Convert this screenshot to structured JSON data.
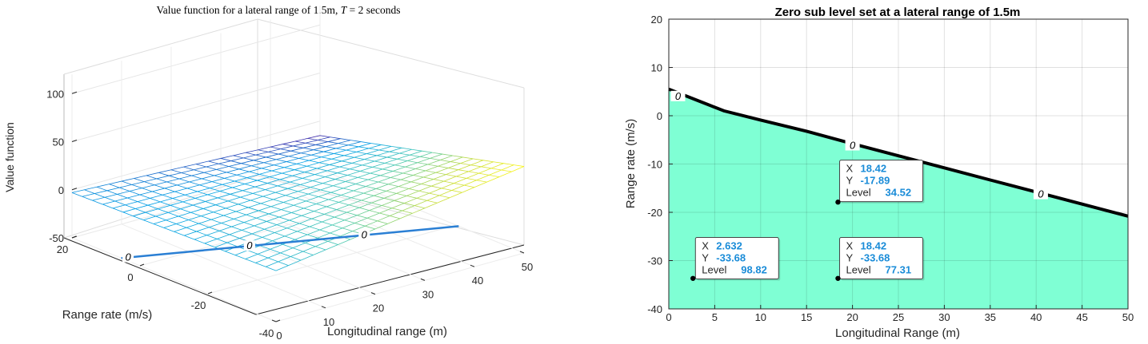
{
  "chart_data": [
    {
      "type": "surface",
      "title": "Value function for a lateral range of 1.5m, T = 2 seconds",
      "title_parts": {
        "prefix": "Value function for a lateral range of 1.5m, ",
        "var": "T",
        "suffix": " = 2 seconds"
      },
      "xlabel": "Longitudinal range (m)",
      "ylabel": "Range rate (m/s)",
      "zlabel": "Value function",
      "x_ticks": [
        "0",
        "10",
        "20",
        "30",
        "40",
        "50"
      ],
      "y_ticks": [
        "20",
        "0",
        "-20",
        "-40"
      ],
      "z_ticks": [
        "100",
        "50",
        "0",
        "-50"
      ],
      "xlim": [
        0,
        50
      ],
      "ylim": [
        -40,
        20
      ],
      "zlim": [
        -50,
        120
      ],
      "surface_corner_values": [
        {
          "x": 0,
          "y": 20,
          "z": -3
        },
        {
          "x": 50,
          "y": 20,
          "z": -15
        },
        {
          "x": 0,
          "y": -40,
          "z": 3
        },
        {
          "x": 50,
          "y": -40,
          "z": 40
        }
      ],
      "zero_contour_labels": [
        "0",
        "0",
        "0"
      ],
      "zero_contour": {
        "x": [
          0,
          50
        ],
        "y": [
          5.5,
          -20.8
        ]
      }
    },
    {
      "type": "contour",
      "title": "Zero sub level set at a lateral range of 1.5m",
      "xlabel": "Longitudinal Range (m)",
      "ylabel": "Range rate (m/s)",
      "x_ticks": [
        "0",
        "5",
        "10",
        "15",
        "20",
        "25",
        "30",
        "35",
        "40",
        "45",
        "50"
      ],
      "y_ticks": [
        "20",
        "10",
        "0",
        "-10",
        "-20",
        "-30",
        "-40"
      ],
      "xlim": [
        0,
        50
      ],
      "ylim": [
        -40,
        20
      ],
      "fill_color": "#7fffd4",
      "line_color": "#000000",
      "zero_contour": {
        "x": [
          0,
          6,
          10,
          15,
          20,
          25,
          30,
          35,
          40,
          45,
          50
        ],
        "y": [
          5.5,
          1.0,
          -0.9,
          -3.2,
          -5.8,
          -8.3,
          -10.8,
          -13.3,
          -15.8,
          -18.3,
          -20.8
        ]
      },
      "contour_labels": [
        {
          "text": "0",
          "x": 1,
          "y": 4
        },
        {
          "text": "0",
          "x": 20,
          "y": -6.2
        },
        {
          "text": "0",
          "x": 40.5,
          "y": -16.3
        }
      ],
      "datatips": [
        {
          "x": 18.42,
          "y": -17.89,
          "x_label": "X",
          "y_label": "Y",
          "level_label": "Level",
          "x_text": "18.42",
          "y_text": "-17.89",
          "level_text": "34.52",
          "box_x": 18.6,
          "box_y": -9.2
        },
        {
          "x": 2.632,
          "y": -33.68,
          "x_label": "X",
          "y_label": "Y",
          "level_label": "Level",
          "x_text": "2.632",
          "y_text": "-33.68",
          "level_text": "98.82",
          "box_x": 2.9,
          "box_y": -25.2
        },
        {
          "x": 18.42,
          "y": -33.68,
          "x_label": "X",
          "y_label": "Y",
          "level_label": "Level",
          "x_text": "18.42",
          "y_text": "-33.68",
          "level_text": "77.31",
          "box_x": 18.6,
          "box_y": -25.2
        }
      ]
    }
  ]
}
